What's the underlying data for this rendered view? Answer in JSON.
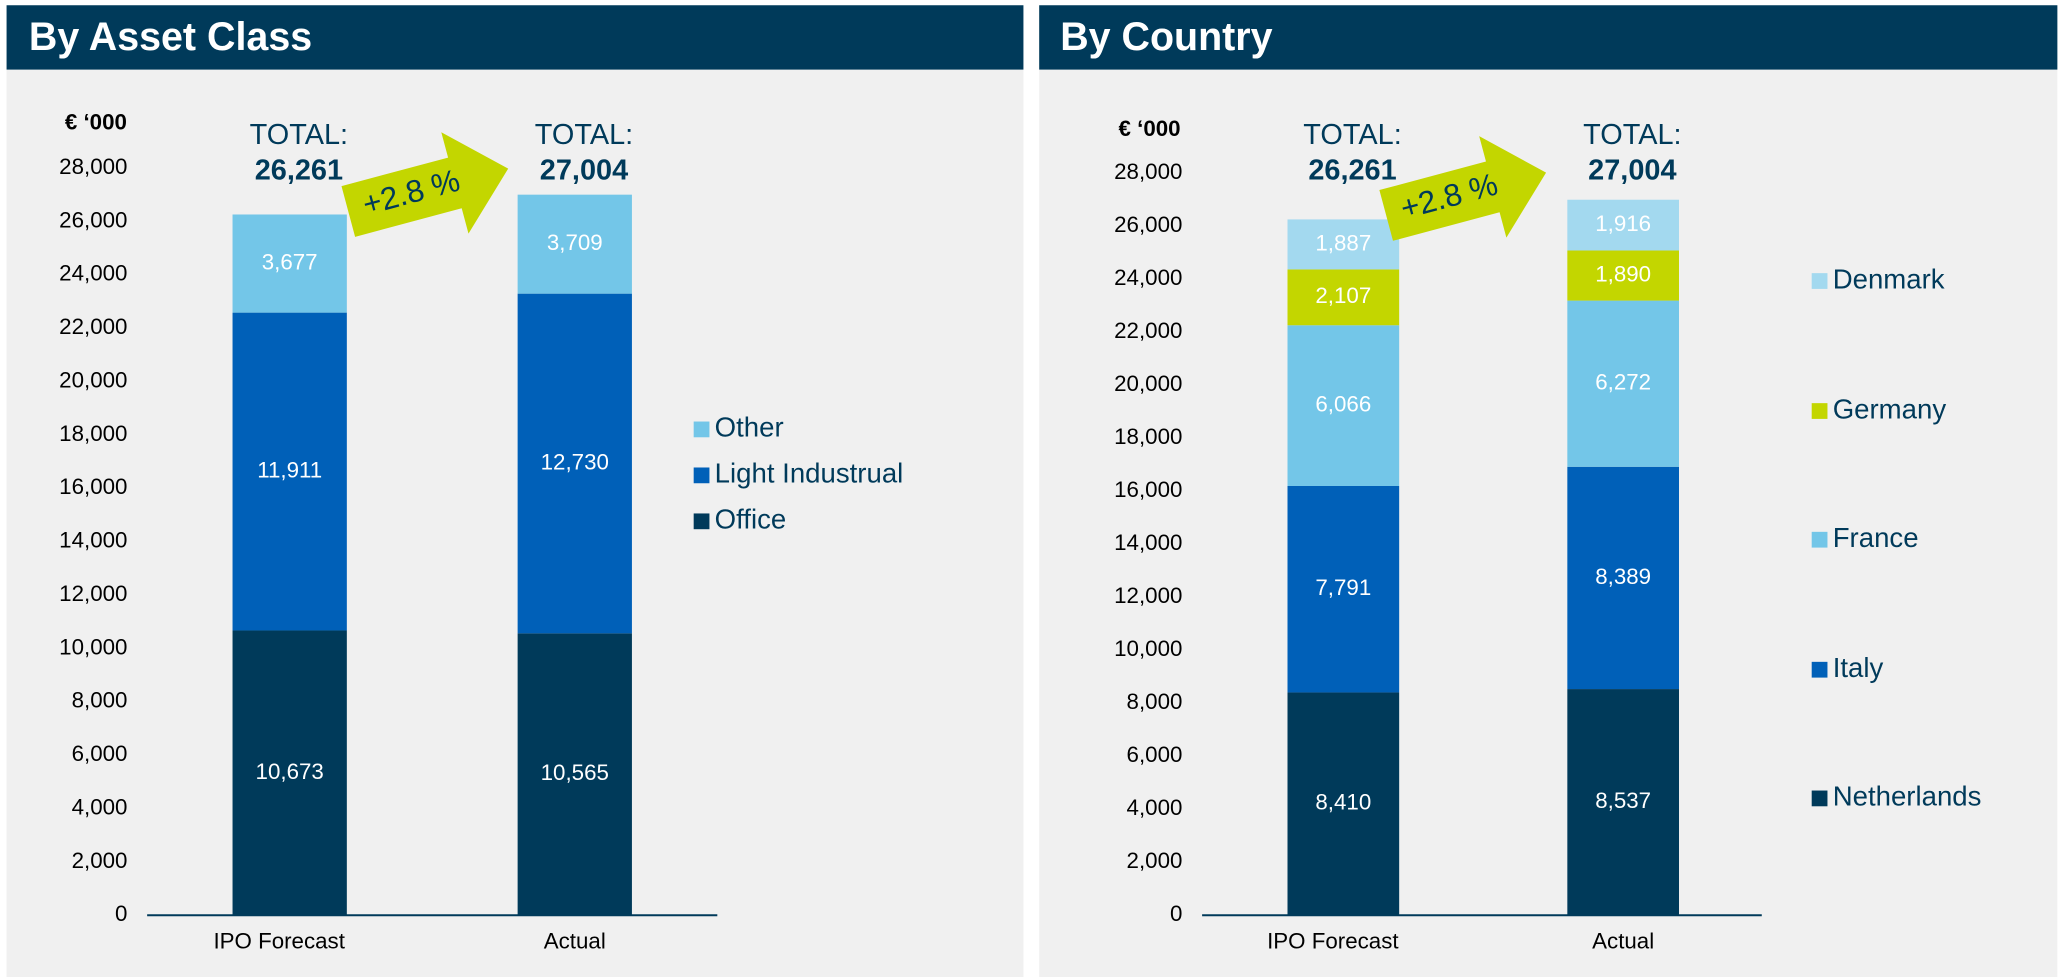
{
  "chart_data": [
    {
      "type": "bar",
      "stacked": true,
      "title": "By Asset Class",
      "unit_label": "€ ‘000",
      "categories": [
        "IPO Forecast",
        "Actual"
      ],
      "series": [
        {
          "name": "Office",
          "color": "#003a5a",
          "values": [
            10673,
            10565
          ],
          "value_labels": [
            "10,673",
            "10,565"
          ]
        },
        {
          "name": "Light Industrual",
          "color": "#0060b8",
          "values": [
            11911,
            12730
          ],
          "value_labels": [
            "11,911",
            "12,730"
          ]
        },
        {
          "name": "Other",
          "color": "#73c6e8",
          "values": [
            3677,
            3709
          ],
          "value_labels": [
            "3,677",
            "3,709"
          ]
        }
      ],
      "total_label": "TOTAL:",
      "total_values": [
        "26,261",
        "27,004"
      ],
      "change": "+2.8 %",
      "ylim": [
        0,
        28000
      ],
      "yticks": [
        0,
        {
          "value": 2000,
          "label": "2,000"
        },
        {
          "value": 4000,
          "label": "4,000"
        },
        {
          "value": 6000,
          "label": "6,000"
        },
        {
          "value": 8000,
          "label": "8,000"
        },
        {
          "value": 10000,
          "label": "10,000"
        },
        {
          "value": 12000,
          "label": "12,000"
        },
        {
          "value": 14000,
          "label": "14,000"
        },
        {
          "value": 16000,
          "label": "16,000"
        },
        {
          "value": 18000,
          "label": "18,000"
        },
        {
          "value": 20000,
          "label": "20,000"
        },
        {
          "value": 22000,
          "label": "22,000"
        },
        {
          "value": 24000,
          "label": "24,000"
        },
        {
          "value": 26000,
          "label": "26,000"
        },
        {
          "value": 28000,
          "label": "28,000"
        }
      ],
      "grid": false,
      "legend": "right"
    },
    {
      "type": "bar",
      "stacked": true,
      "title": "By Country",
      "unit_label": "€ ‘000",
      "categories": [
        "IPO Forecast",
        "Actual"
      ],
      "series": [
        {
          "name": "Netherlands",
          "color": "#003a5a",
          "values": [
            8410,
            8537
          ],
          "value_labels": [
            "8,410",
            "8,537"
          ]
        },
        {
          "name": "Italy",
          "color": "#0060b8",
          "values": [
            7791,
            8389
          ],
          "value_labels": [
            "7,791",
            "8,389"
          ]
        },
        {
          "name": "France",
          "color": "#73c6e8",
          "values": [
            6066,
            6272
          ],
          "value_labels": [
            "6,066",
            "6,272"
          ]
        },
        {
          "name": "Germany",
          "color": "#c3d600",
          "values": [
            2107,
            1890
          ],
          "value_labels": [
            "2,107",
            "1,890"
          ]
        },
        {
          "name": "Denmark",
          "color": "#a3d9ef",
          "values": [
            1887,
            1916
          ],
          "value_labels": [
            "1,887",
            "1,916"
          ]
        }
      ],
      "total_label": "TOTAL:",
      "total_values": [
        "26,261",
        "27,004"
      ],
      "change": "+2.8 %",
      "ylim": [
        0,
        28000
      ],
      "yticks": [
        0,
        {
          "value": 2000,
          "label": "2,000"
        },
        {
          "value": 4000,
          "label": "4,000"
        },
        {
          "value": 6000,
          "label": "6,000"
        },
        {
          "value": 8000,
          "label": "8,000"
        },
        {
          "value": 10000,
          "label": "10,000"
        },
        {
          "value": 12000,
          "label": "12,000"
        },
        {
          "value": 14000,
          "label": "14,000"
        },
        {
          "value": 16000,
          "label": "16,000"
        },
        {
          "value": 18000,
          "label": "18,000"
        },
        {
          "value": 20000,
          "label": "20,000"
        },
        {
          "value": 22000,
          "label": "22,000"
        },
        {
          "value": 24000,
          "label": "24,000"
        },
        {
          "value": 26000,
          "label": "26,000"
        },
        {
          "value": 28000,
          "label": "28,000"
        }
      ],
      "grid": false,
      "legend": "right"
    }
  ]
}
